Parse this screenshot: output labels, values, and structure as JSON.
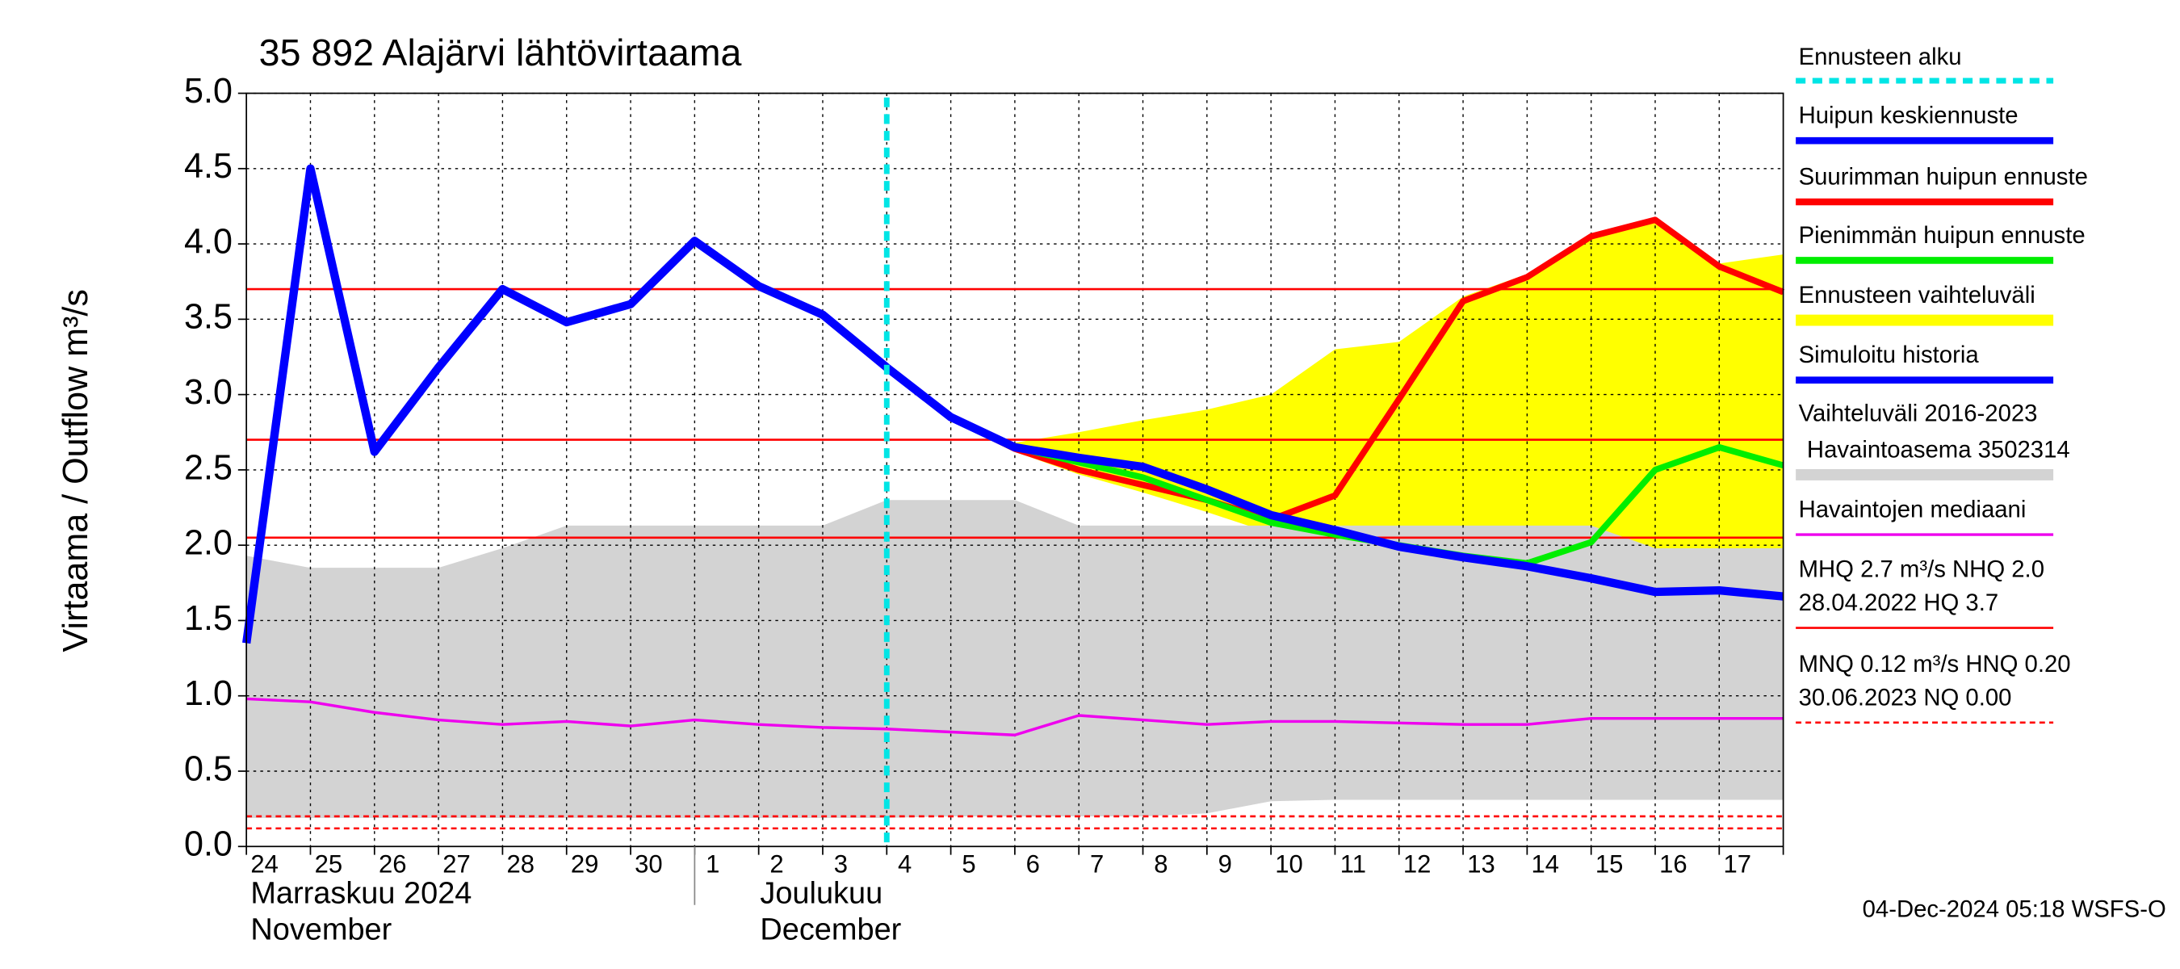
{
  "chart_data": {
    "type": "line",
    "title": "35 892 Alajärvi lähtövirtaama",
    "y_label": "Virtaama / Outflow    m³/s",
    "categories": [
      "24",
      "25",
      "26",
      "27",
      "28",
      "29",
      "30",
      "1",
      "2",
      "3",
      "4",
      "5",
      "6",
      "7",
      "8",
      "9",
      "10",
      "11",
      "12",
      "13",
      "14",
      "15",
      "16",
      "17",
      null
    ],
    "ylim": [
      0,
      5
    ],
    "yticks": [
      {
        "value": 0,
        "label": "0.0"
      },
      0.5,
      {
        "value": 1,
        "label": "1.0"
      },
      1.5,
      {
        "value": 2,
        "label": "2.0"
      },
      2.5,
      {
        "value": 3,
        "label": "3.0"
      },
      3.5,
      {
        "value": 4,
        "label": "4.0"
      },
      4.5,
      {
        "value": 5,
        "label": "5.0"
      }
    ],
    "grid": true,
    "forecast_start": {
      "name": "Ennusteen alku",
      "color": "#00e5e5",
      "category": "4"
    },
    "series": [
      {
        "name": "Huipun keskiennuste",
        "color": "#0000ff",
        "kind": "line",
        "width": 6,
        "values": [
          null,
          null,
          null,
          null,
          null,
          null,
          null,
          null,
          null,
          null,
          3.18,
          2.85,
          2.65,
          2.58,
          2.52,
          2.37,
          2.2,
          2.1,
          1.99,
          1.92,
          1.86,
          1.78,
          1.69,
          1.7,
          1.66
        ]
      },
      {
        "name": "Suurimman huipun ennuste",
        "color": "#ff0000",
        "kind": "line",
        "width": 4.5,
        "values": [
          null,
          null,
          null,
          null,
          null,
          null,
          null,
          null,
          null,
          null,
          3.18,
          2.85,
          2.64,
          2.5,
          2.4,
          2.3,
          2.17,
          2.33,
          2.97,
          3.62,
          3.78,
          4.05,
          4.16,
          3.85,
          3.68
        ]
      },
      {
        "name": "Pienimmän huipun ennuste",
        "color": "#00ee00",
        "kind": "line",
        "width": 4.5,
        "values": [
          null,
          null,
          null,
          null,
          null,
          null,
          null,
          null,
          null,
          null,
          3.18,
          2.85,
          2.65,
          2.55,
          2.45,
          2.3,
          2.15,
          2.07,
          2.0,
          1.93,
          1.88,
          2.02,
          2.5,
          2.65,
          2.53
        ]
      },
      {
        "name": "Ennusteen vaihteluväli",
        "color": "#ffff00",
        "kind": "band",
        "upper": [
          null,
          null,
          null,
          null,
          null,
          null,
          null,
          null,
          null,
          null,
          3.18,
          2.85,
          2.68,
          2.75,
          2.83,
          2.9,
          3.0,
          3.3,
          3.35,
          3.65,
          3.8,
          4.05,
          4.16,
          3.87,
          3.93
        ],
        "lower": [
          null,
          null,
          null,
          null,
          null,
          null,
          null,
          null,
          null,
          null,
          3.18,
          2.83,
          2.62,
          2.47,
          2.35,
          2.22,
          2.08,
          1.97,
          1.88,
          1.8,
          1.73,
          1.67,
          1.6,
          1.53,
          1.45
        ]
      },
      {
        "name": "Simuloitu historia",
        "color": "#0000ff",
        "kind": "line",
        "width": 6,
        "values": [
          1.35,
          4.5,
          2.62,
          3.18,
          3.7,
          3.48,
          3.6,
          4.02,
          3.72,
          3.53,
          3.18,
          null,
          null,
          null,
          null,
          null,
          null,
          null,
          null,
          null,
          null,
          null,
          null,
          null,
          null
        ]
      },
      {
        "name": "Vaihteluväli 2016-2023",
        "subname": "Havaintoasema 3502314",
        "color": "#d3d3d3",
        "kind": "band",
        "upper": [
          1.93,
          1.85,
          1.85,
          1.85,
          1.98,
          2.13,
          2.13,
          2.13,
          2.13,
          2.13,
          2.3,
          2.3,
          2.3,
          2.13,
          2.13,
          2.13,
          2.13,
          2.13,
          2.13,
          2.13,
          2.13,
          2.13,
          1.98,
          1.98,
          1.98
        ],
        "lower": [
          0.19,
          0.19,
          0.19,
          0.19,
          0.19,
          0.19,
          0.19,
          0.19,
          0.19,
          0.19,
          0.19,
          0.2,
          0.2,
          0.2,
          0.2,
          0.22,
          0.3,
          0.31,
          0.31,
          0.31,
          0.31,
          0.31,
          0.31,
          0.31,
          0.31
        ]
      },
      {
        "name": "Havaintojen mediaani",
        "color": "#ee00ee",
        "kind": "line",
        "width": 2,
        "values": [
          0.98,
          0.96,
          0.89,
          0.84,
          0.81,
          0.83,
          0.8,
          0.84,
          0.81,
          0.79,
          0.78,
          0.76,
          0.74,
          0.87,
          0.84,
          0.81,
          0.83,
          0.83,
          0.82,
          0.81,
          0.81,
          0.85,
          0.85,
          0.85,
          0.85
        ]
      }
    ],
    "reference_lines": [
      {
        "value": 3.7,
        "style": "solid",
        "color": "#ff0000"
      },
      {
        "value": 2.7,
        "style": "solid",
        "color": "#ff0000"
      },
      {
        "value": 2.05,
        "style": "solid",
        "color": "#ff0000"
      },
      {
        "value": 0.2,
        "style": "dashed",
        "color": "#ff0000"
      },
      {
        "value": 0.12,
        "style": "dashed",
        "color": "#ff0000"
      }
    ],
    "reference_legend": [
      {
        "lines": [
          "MHQ  2.7 m³/s NHQ  2.0",
          "28.04.2022 HQ  3.7"
        ],
        "style": "solid",
        "color": "#ff0000"
      },
      {
        "lines": [
          "MNQ 0.12 m³/s HNQ 0.20",
          "30.06.2023 NQ 0.00"
        ],
        "style": "dashed",
        "color": "#ff0000"
      }
    ],
    "month_labels": [
      [
        "Marraskuu 2024",
        "November"
      ],
      [
        "Joulukuu",
        "December"
      ]
    ],
    "timestamp": "04-Dec-2024 05:18 WSFS-O"
  }
}
